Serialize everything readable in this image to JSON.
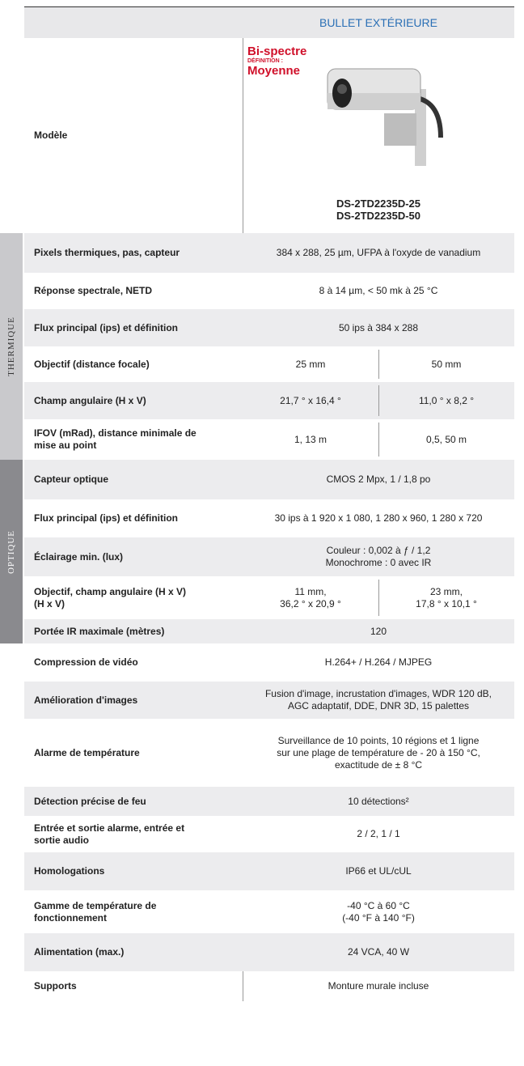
{
  "header": {
    "title": "BULLET EXTÉRIEURE"
  },
  "model": {
    "label": "Modèle",
    "badge": [
      "Bi-spectre",
      "DÉFINITION :",
      "Moyenne"
    ],
    "names": [
      "DS-2TD2235D-25",
      "DS-2TD2235D-50"
    ]
  },
  "sections": [
    {
      "label": "THERMIQUE",
      "rows": [
        {
          "label": "Pixels thermiques, pas, capteur",
          "values": [
            "384 x 288, 25 µm, UFPA à l'oxyde de vanadium"
          ]
        },
        {
          "label": "Réponse spectrale, NETD",
          "values": [
            "8 à 14 µm, < 50 mk à 25 °C"
          ]
        },
        {
          "label": "Flux principal (ips) et définition",
          "values": [
            "50 ips à 384 x 288"
          ]
        },
        {
          "label": "Objectif (distance focale)",
          "values": [
            "25 mm",
            "50 mm"
          ]
        },
        {
          "label": "Champ angulaire (H x V)",
          "values": [
            "21,7 ° x 16,4 °",
            "11,0 ° x 8,2 °"
          ]
        },
        {
          "label": "IFOV (mRad), distance minimale de\nmise au point",
          "values": [
            "1, 13 m",
            "0,5, 50 m"
          ]
        }
      ]
    },
    {
      "label": "OPTIQUE",
      "rows": [
        {
          "label": "Capteur optique",
          "values": [
            "CMOS 2 Mpx, 1 / 1,8 po"
          ]
        },
        {
          "label": "Flux principal (ips) et définition",
          "values": [
            "30 ips à 1 920 x 1 080, 1 280 x 960, 1 280 x 720"
          ]
        },
        {
          "label": "Éclairage min. (lux)",
          "values": [
            "Couleur : 0,002 à ƒ / 1,2\nMonochrome : 0 avec IR"
          ]
        },
        {
          "label": "Objectif, champ angulaire (H x V)\n(H x V)",
          "values": [
            "11 mm,\n36,2 ° x 20,9 °",
            "23 mm,\n17,8 ° x 10,1 °"
          ]
        },
        {
          "label": "Portée IR maximale (mètres)",
          "values": [
            "120"
          ]
        }
      ]
    }
  ],
  "general_rows": [
    {
      "label": "Compression de vidéo",
      "values": [
        "H.264+ / H.264 / MJPEG"
      ]
    },
    {
      "label": "Amélioration d'images",
      "values": [
        "Fusion d'image, incrustation d'images, WDR 120 dB,\nAGC adaptatif, DDE, DNR 3D, 15 palettes"
      ]
    },
    {
      "label": "Alarme de température",
      "values": [
        "Surveillance de 10 points, 10 régions et 1 ligne\nsur une plage de température de - 20 à 150 °C,\nexactitude de ± 8 °C"
      ]
    },
    {
      "label": "Détection précise de feu",
      "values": [
        "10 détections²"
      ]
    },
    {
      "label": "Entrée et sortie alarme, entrée et\nsortie audio",
      "values": [
        "2 / 2, 1 / 1"
      ]
    },
    {
      "label": "Homologations",
      "values": [
        "IP66 et UL/cUL"
      ]
    },
    {
      "label": "Gamme de température de\nfonctionnement",
      "values": [
        "-40 °C à 60 °C\n(-40 °F à 140 °F)"
      ]
    },
    {
      "label": "Alimentation (max.)",
      "values": [
        "24 VCA, 40 W"
      ]
    },
    {
      "label": "Supports",
      "values": [
        "Monture murale incluse"
      ]
    }
  ]
}
